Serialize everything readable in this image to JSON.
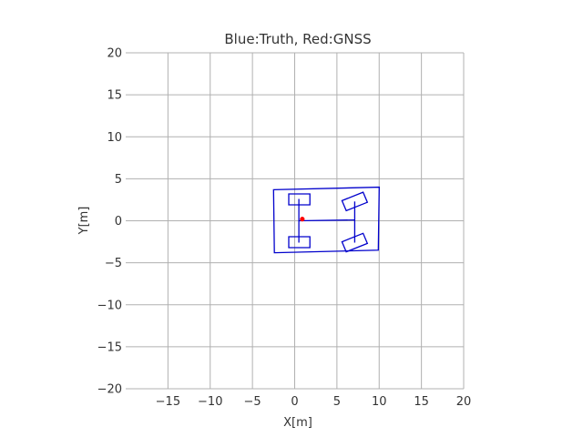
{
  "chart_data": {
    "type": "line",
    "title": "Blue:Truth, Red:GNSS",
    "xlabel": "X[m]",
    "ylabel": "Y[m]",
    "xlim": [
      -20,
      20
    ],
    "ylim": [
      -20,
      20
    ],
    "xticks": [
      -15,
      -10,
      -5,
      0,
      5,
      10,
      15,
      20
    ],
    "yticks": [
      -20,
      -15,
      -10,
      -5,
      0,
      5,
      10,
      15,
      20
    ],
    "xtick_labels": [
      "−15",
      "−10",
      "−5",
      "0",
      "5",
      "10",
      "15",
      "20"
    ],
    "ytick_labels": [
      "−20",
      "−15",
      "−10",
      "−5",
      "0",
      "5",
      "10",
      "15",
      "20"
    ],
    "grid": true,
    "truth_color": "#0000cc",
    "gnss_color": "#ff0000",
    "truth_shapes": [
      {
        "name": "body",
        "points": [
          [
            -2.5,
            3.7
          ],
          [
            10.0,
            4.0
          ],
          [
            9.9,
            -3.5
          ],
          [
            -2.4,
            -3.8
          ]
        ]
      },
      {
        "name": "wheel-rear-left",
        "points": [
          [
            -0.7,
            3.2
          ],
          [
            1.8,
            3.2
          ],
          [
            1.8,
            1.9
          ],
          [
            -0.7,
            1.9
          ]
        ]
      },
      {
        "name": "wheel-rear-right",
        "points": [
          [
            -0.7,
            -1.9
          ],
          [
            1.8,
            -1.9
          ],
          [
            1.8,
            -3.2
          ],
          [
            -0.7,
            -3.2
          ]
        ]
      },
      {
        "name": "wheel-front-left",
        "points": [
          [
            5.6,
            2.4
          ],
          [
            8.1,
            3.4
          ],
          [
            8.6,
            2.2
          ],
          [
            6.1,
            1.2
          ]
        ]
      },
      {
        "name": "wheel-front-right",
        "points": [
          [
            5.6,
            -2.5
          ],
          [
            8.1,
            -1.5
          ],
          [
            8.6,
            -2.7
          ],
          [
            6.1,
            -3.7
          ]
        ]
      }
    ],
    "truth_lines": [
      {
        "name": "rear-axle",
        "points": [
          [
            0.5,
            2.6
          ],
          [
            0.5,
            -2.6
          ]
        ]
      },
      {
        "name": "front-axle",
        "points": [
          [
            7.1,
            2.3
          ],
          [
            7.1,
            -2.6
          ]
        ]
      },
      {
        "name": "wheelbase",
        "points": [
          [
            0.5,
            0.0
          ],
          [
            7.1,
            0.1
          ]
        ]
      }
    ],
    "gnss_points": [
      [
        0.9,
        0.2
      ]
    ]
  }
}
